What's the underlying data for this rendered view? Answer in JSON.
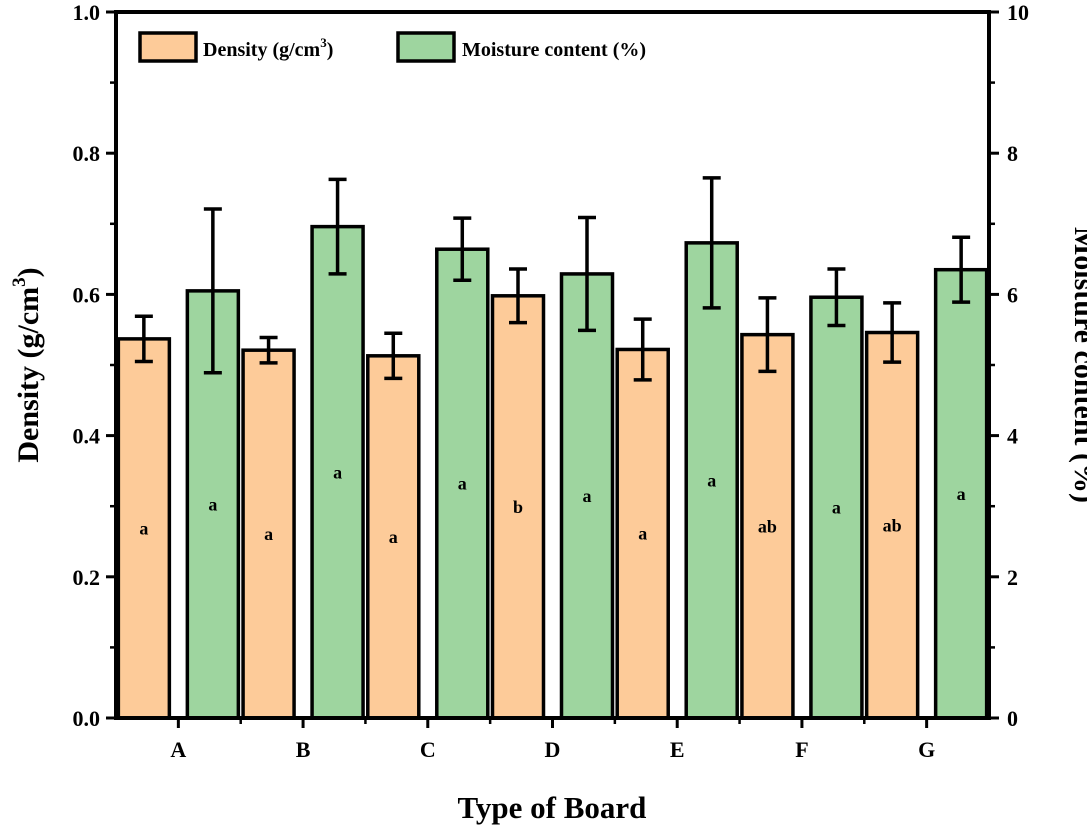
{
  "chart_data": {
    "type": "bar",
    "xlabel": "Type of Board",
    "ylabel_left": "Density (g/cm³)",
    "ylabel_right": "Moisture content (%)",
    "categories": [
      "A",
      "B",
      "C",
      "D",
      "E",
      "F",
      "G"
    ],
    "ylim_left": [
      0.0,
      1.0
    ],
    "ylim_right": [
      0,
      10
    ],
    "yticks_left": [
      "0.0",
      "0.2",
      "0.4",
      "0.6",
      "0.8",
      "1.0"
    ],
    "yticks_right": [
      "0",
      "2",
      "4",
      "6",
      "8",
      "10"
    ],
    "grid": false,
    "legend_position": "top-left",
    "series": [
      {
        "name": "Density (g/cm³)",
        "axis": "left",
        "color": "#fdcb99",
        "values": [
          0.537,
          0.521,
          0.513,
          0.598,
          0.522,
          0.543,
          0.546
        ],
        "errors": [
          0.032,
          0.018,
          0.032,
          0.038,
          0.043,
          0.052,
          0.042
        ],
        "significance": [
          "a",
          "a",
          "a",
          "b",
          "a",
          "ab",
          "ab"
        ]
      },
      {
        "name": "Moisture content (%)",
        "axis": "right",
        "color": "#9ed59f",
        "values": [
          6.05,
          6.96,
          6.64,
          6.29,
          6.73,
          5.96,
          6.35
        ],
        "errors": [
          1.16,
          0.67,
          0.44,
          0.8,
          0.92,
          0.4,
          0.46
        ],
        "significance": [
          "a",
          "a",
          "a",
          "a",
          "a",
          "a",
          "a"
        ]
      }
    ]
  },
  "legend": {
    "density_prefix": "Density (g/cm",
    "density_sup": "3",
    "density_suffix": ")",
    "moisture": "Moisture content (%)"
  },
  "axis_labels": {
    "left_prefix": "Density (g/cm",
    "left_sup": "3",
    "left_suffix": ")",
    "right": "Moisture content (%)",
    "x": "Type of Board"
  }
}
